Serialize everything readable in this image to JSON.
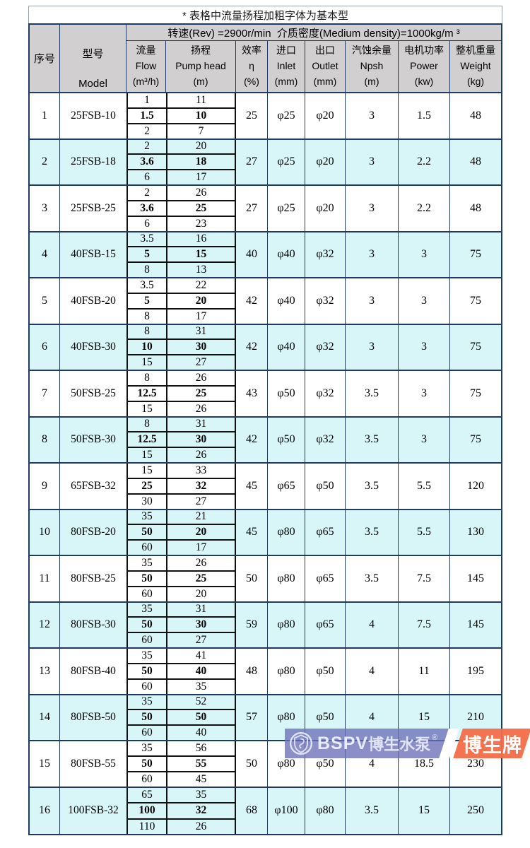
{
  "table": {
    "title": "* 表格中流量扬程加粗字体为基本型",
    "spec_line": "转速(Rev) =2900r/min  介质密度(Medium density)=1000kg/m ³",
    "columns": {
      "no": "序号",
      "model_cn": "型号",
      "model_en": "Model",
      "flow": {
        "cn": "流量",
        "en": "Flow",
        "unit": "(m³/h)"
      },
      "head": {
        "cn": "扬程",
        "en": "Pump head",
        "unit": "(m)"
      },
      "eff": {
        "cn": "效率",
        "en": "η",
        "unit": "(%)"
      },
      "inlet": {
        "cn": "进口",
        "en": "Inlet",
        "unit": "(mm)"
      },
      "outlet": {
        "cn": "出口",
        "en": "Outlet",
        "unit": "(mm)"
      },
      "npsh": {
        "cn": "汽蚀余量",
        "en": "Npsh",
        "unit": "(m)"
      },
      "power": {
        "cn": "电机功率",
        "en": "Power",
        "unit": "(kw)"
      },
      "weight": {
        "cn": "整机重量",
        "en": "Weight",
        "unit": "(kg)"
      }
    },
    "rows": [
      {
        "no": "1",
        "model": "25FSB-10",
        "flows": [
          "1",
          "1.5",
          "2"
        ],
        "heads": [
          "11",
          "10",
          "7"
        ],
        "eff": "25",
        "inlet": "φ25",
        "outlet": "φ20",
        "npsh": "3",
        "power": "1.5",
        "weight": "48"
      },
      {
        "no": "2",
        "model": "25FSB-18",
        "flows": [
          "2",
          "3.6",
          "6"
        ],
        "heads": [
          "20",
          "18",
          "17"
        ],
        "eff": "27",
        "inlet": "φ25",
        "outlet": "φ20",
        "npsh": "3",
        "power": "2.2",
        "weight": "48"
      },
      {
        "no": "3",
        "model": "25FSB-25",
        "flows": [
          "2",
          "3.6",
          "6"
        ],
        "heads": [
          "26",
          "25",
          "23"
        ],
        "eff": "27",
        "inlet": "φ25",
        "outlet": "φ20",
        "npsh": "3",
        "power": "2.2",
        "weight": "48"
      },
      {
        "no": "4",
        "model": "40FSB-15",
        "flows": [
          "3.5",
          "5",
          "8"
        ],
        "heads": [
          "16",
          "15",
          "13"
        ],
        "eff": "40",
        "inlet": "φ40",
        "outlet": "φ32",
        "npsh": "3",
        "power": "3",
        "weight": "75"
      },
      {
        "no": "5",
        "model": "40FSB-20",
        "flows": [
          "3.5",
          "5",
          "8"
        ],
        "heads": [
          "22",
          "20",
          "17"
        ],
        "eff": "42",
        "inlet": "φ40",
        "outlet": "φ32",
        "npsh": "3",
        "power": "3",
        "weight": "75"
      },
      {
        "no": "6",
        "model": "40FSB-30",
        "flows": [
          "8",
          "10",
          "15"
        ],
        "heads": [
          "31",
          "30",
          "27"
        ],
        "eff": "42",
        "inlet": "φ40",
        "outlet": "φ32",
        "npsh": "3",
        "power": "3",
        "weight": "75"
      },
      {
        "no": "7",
        "model": "50FSB-25",
        "flows": [
          "8",
          "12.5",
          "15"
        ],
        "heads": [
          "26",
          "25",
          "26"
        ],
        "eff": "43",
        "inlet": "φ50",
        "outlet": "φ32",
        "npsh": "3.5",
        "power": "3",
        "weight": "75"
      },
      {
        "no": "8",
        "model": "50FSB-30",
        "flows": [
          "8",
          "12.5",
          "15"
        ],
        "heads": [
          "31",
          "30",
          "26"
        ],
        "eff": "42",
        "inlet": "φ50",
        "outlet": "φ32",
        "npsh": "3.5",
        "power": "3",
        "weight": "75"
      },
      {
        "no": "9",
        "model": "65FSB-32",
        "flows": [
          "15",
          "25",
          "30"
        ],
        "heads": [
          "33",
          "32",
          "27"
        ],
        "eff": "45",
        "inlet": "φ65",
        "outlet": "φ50",
        "npsh": "3.5",
        "power": "5.5",
        "weight": "120"
      },
      {
        "no": "10",
        "model": "80FSB-20",
        "flows": [
          "35",
          "50",
          "60"
        ],
        "heads": [
          "21",
          "20",
          "17"
        ],
        "eff": "45",
        "inlet": "φ80",
        "outlet": "φ65",
        "npsh": "3.5",
        "power": "5.5",
        "weight": "130"
      },
      {
        "no": "11",
        "model": "80FSB-25",
        "flows": [
          "35",
          "50",
          "60"
        ],
        "heads": [
          "26",
          "25",
          "20"
        ],
        "eff": "50",
        "inlet": "φ80",
        "outlet": "φ65",
        "npsh": "3.5",
        "power": "7.5",
        "weight": "145"
      },
      {
        "no": "12",
        "model": "80FSB-30",
        "flows": [
          "35",
          "50",
          "60"
        ],
        "heads": [
          "31",
          "30",
          "27"
        ],
        "eff": "59",
        "inlet": "φ80",
        "outlet": "φ65",
        "npsh": "4",
        "power": "7.5",
        "weight": "145"
      },
      {
        "no": "13",
        "model": "80FSB-40",
        "flows": [
          "35",
          "50",
          "60"
        ],
        "heads": [
          "41",
          "40",
          "35"
        ],
        "eff": "48",
        "inlet": "φ80",
        "outlet": "φ50",
        "npsh": "4",
        "power": "11",
        "weight": "195"
      },
      {
        "no": "14",
        "model": "80FSB-50",
        "flows": [
          "35",
          "50",
          "60"
        ],
        "heads": [
          "52",
          "50",
          "40"
        ],
        "eff": "57",
        "inlet": "φ80",
        "outlet": "φ50",
        "npsh": "4",
        "power": "15",
        "weight": "210"
      },
      {
        "no": "15",
        "model": "80FSB-55",
        "flows": [
          "35",
          "50",
          "60"
        ],
        "heads": [
          "56",
          "55",
          "45"
        ],
        "eff": "50",
        "inlet": "φ80",
        "outlet": "φ50",
        "npsh": "4",
        "power": "18.5",
        "weight": "230"
      },
      {
        "no": "16",
        "model": "100FSB-32",
        "flows": [
          "65",
          "100",
          "110"
        ],
        "heads": [
          "35",
          "32",
          "26"
        ],
        "eff": "68",
        "inlet": "φ100",
        "outlet": "φ80",
        "npsh": "3.5",
        "power": "15",
        "weight": "250"
      }
    ]
  },
  "watermark": {
    "brand_en": "BSPV",
    "brand_cn": "博生水泵",
    "registered": "®",
    "badge": "博生牌",
    "colors": {
      "band": "#6b70b7",
      "badge": "#f36d49"
    }
  },
  "colors": {
    "border_navy": "#1f3a63",
    "header_gray": "#d1cfcf",
    "row_cyan": "#d8f6f8",
    "inner_black": "#111111"
  }
}
